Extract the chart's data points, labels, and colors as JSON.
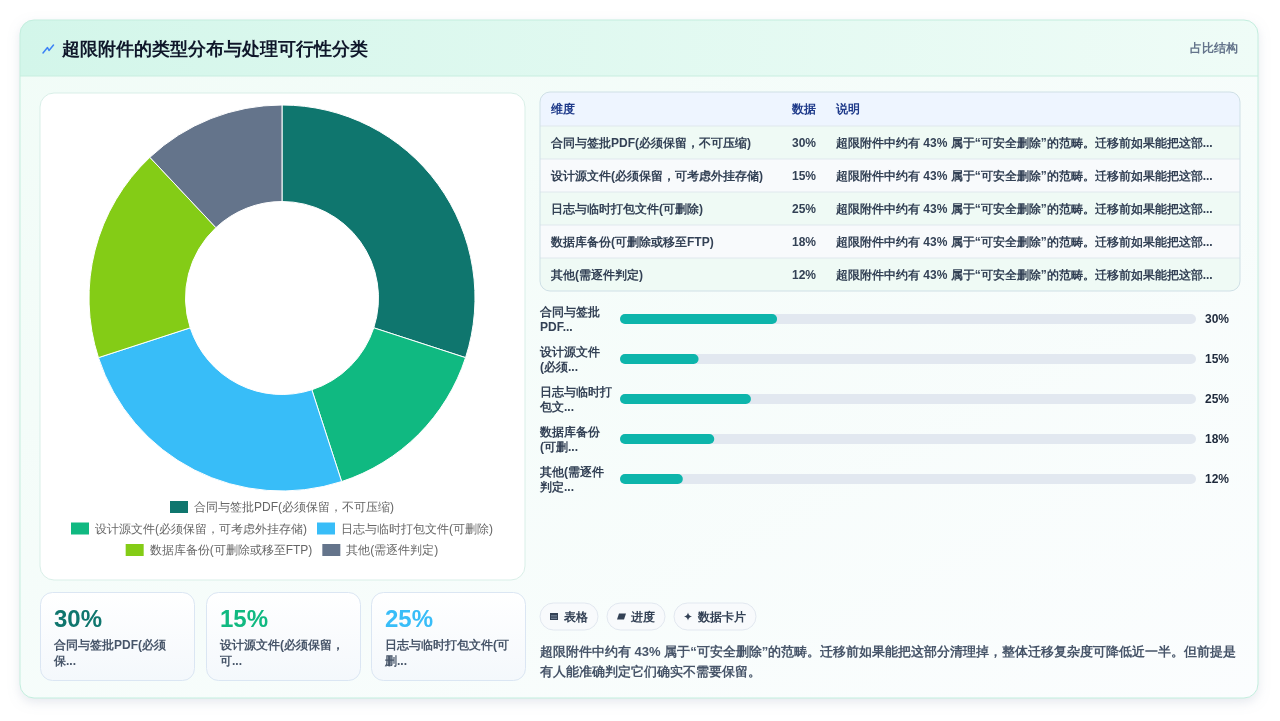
{
  "chart_data": [
    {
      "type": "donut",
      "title": "超限附件的类型分布与处理可行性分类",
      "categories": [
        "合同与签批PDF(必须保留，不可压缩)",
        "设计源文件(必须保留，可考虑外挂存储)",
        "日志与临时打包文件(可删除)",
        "数据库备份(可删除或移至FTP)",
        "其他(需逐件判定)"
      ],
      "values": [
        30,
        15,
        25,
        18,
        12
      ],
      "colors": [
        "#0f766e",
        "#10b981",
        "#38bdf8",
        "#84cc16",
        "#64748b"
      ],
      "legend": "bottom"
    },
    {
      "type": "other",
      "title": "占比结构",
      "categories": [
        "维度",
        "数据",
        "说明"
      ],
      "cell_labels": [
        [
          "合同与签批PDF(必须保留，不可压缩)",
          "30%",
          "超限附件中约有 43% 属于“可安全删除”的范畴。迁移前如果能把这部..."
        ],
        [
          "设计源文件(必须保留，可考虑外挂存储)",
          "15%",
          "超限附件中约有 43% 属于“可安全删除”的范畴。迁移前如果能把这部..."
        ],
        [
          "日志与临时打包文件(可删除)",
          "25%",
          "超限附件中约有 43% 属于“可安全删除”的范畴。迁移前如果能把这部..."
        ],
        [
          "数据库备份(可删除或移至FTP)",
          "18%",
          "超限附件中约有 43% 属于“可安全删除”的范畴。迁移前如果能把这部..."
        ],
        [
          "其他(需逐件判定)",
          "12%",
          "超限附件中约有 43% 属于“可安全删除”的范畴。迁移前如果能把这部..."
        ]
      ]
    },
    {
      "type": "bar",
      "orientation": "horizontal",
      "categories": [
        "合同与签批PDF...",
        "设计源文件(必须...",
        "日志与临时打包文...",
        "数据库备份(可删...",
        "其他(需逐件判定..."
      ],
      "values": [
        30,
        15,
        25,
        18,
        12
      ],
      "value_labels": [
        "30%",
        "15%",
        "25%",
        "18%",
        "12%"
      ],
      "color": "#0db5ab",
      "xlim": [
        0,
        110
      ],
      "tick_labels": "y"
    },
    {
      "type": "other",
      "categories": [
        "合同与签批PDF(必须保...",
        "设计源文件(必须保留，可...",
        "日志与临时打包文件(可删..."
      ],
      "values": [
        30,
        15,
        25
      ],
      "value_labels": [
        "30%",
        "15%",
        "25%"
      ]
    },
    {
      "type": "other",
      "categories": [
        "表格",
        "进度",
        "数据卡片"
      ],
      "annotations": [
        "超限附件中约有 43% 属于“可安全删除”的范畴。迁移前如果能把这部分清理掉，整体迁移复杂度可降低近一半。但前提是有人能准确判定它们确实不需要保留。"
      ]
    }
  ]
}
